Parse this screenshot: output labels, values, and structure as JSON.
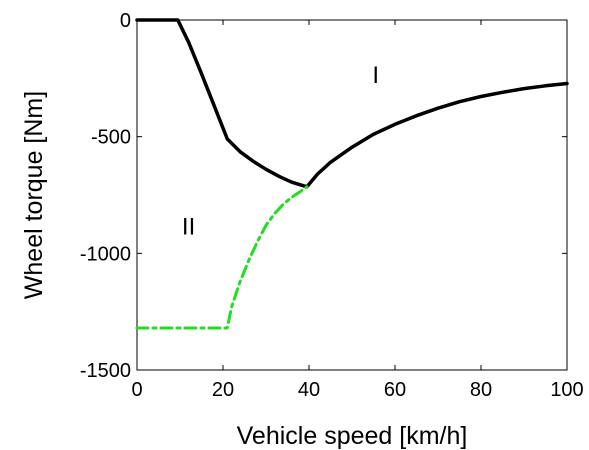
{
  "chart_data": {
    "type": "line",
    "xlabel": "Vehicle speed [km/h]",
    "ylabel": "Wheel torque [Nm]",
    "xlim": [
      0,
      100
    ],
    "ylim": [
      -1500,
      0
    ],
    "xticks": [
      0,
      20,
      40,
      60,
      80,
      100
    ],
    "yticks": [
      0,
      -500,
      -1000,
      -1500
    ],
    "grid": false,
    "series": [
      {
        "color": "#000000",
        "style": "solid",
        "x": [
          0,
          9.5,
          12,
          15,
          18,
          21,
          24,
          27,
          30,
          33,
          36,
          39.5,
          42,
          45,
          50,
          55,
          60,
          65,
          70,
          75,
          80,
          85,
          90,
          95,
          100
        ],
        "y": [
          0,
          0,
          -95,
          -230,
          -370,
          -510,
          -565,
          -605,
          -640,
          -670,
          -695,
          -715,
          -660,
          -610,
          -545,
          -490,
          -447,
          -410,
          -378,
          -350,
          -328,
          -310,
          -294,
          -282,
          -272
        ]
      },
      {
        "color": "#22dd22",
        "style": "dashdot",
        "x": [
          0,
          21,
          22,
          24,
          26,
          28,
          30,
          32,
          34,
          36,
          38,
          39.5
        ],
        "y": [
          -1320,
          -1320,
          -1230,
          -1120,
          -1030,
          -950,
          -880,
          -830,
          -790,
          -760,
          -735,
          -715
        ]
      }
    ],
    "annotations": [
      {
        "text": "I",
        "x": 55.5,
        "y": -270
      },
      {
        "text": "II",
        "x": 12,
        "y": -920
      }
    ]
  }
}
